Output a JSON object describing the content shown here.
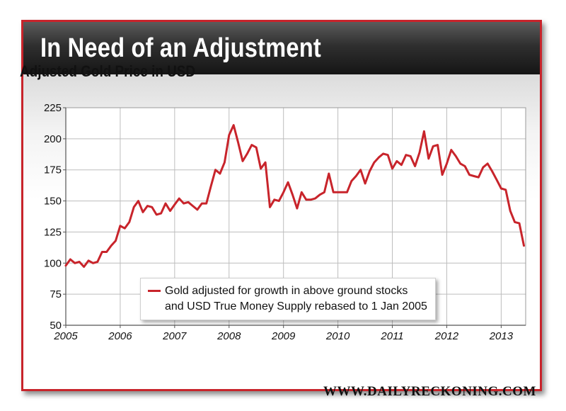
{
  "banner": {
    "title": "In Need of an Adjustment"
  },
  "colors": {
    "accent": "#c8242b",
    "banner": "#222222"
  },
  "footer": {
    "url": "WWW.DAILYRECKONING.COM"
  },
  "chart_data": {
    "type": "line",
    "title": "Adjusted Gold Price in USD",
    "xlabel": "",
    "ylabel": "",
    "xlim": [
      2005,
      2013.45
    ],
    "ylim": [
      50,
      225
    ],
    "x_ticks": [
      2005,
      2006,
      2007,
      2008,
      2009,
      2010,
      2011,
      2012,
      2013
    ],
    "x_tick_labels": [
      "2005",
      "2006",
      "2007",
      "2008",
      "2009",
      "2010",
      "2011",
      "2012",
      "2013"
    ],
    "y_ticks": [
      50,
      75,
      100,
      125,
      150,
      175,
      200,
      225
    ],
    "y_tick_labels": [
      "50",
      "75",
      "100",
      "125",
      "150",
      "175",
      "200",
      "225"
    ],
    "grid": true,
    "legend": {
      "placement": "bottom-center",
      "line1": "Gold adjusted for growth in above ground stocks",
      "line2": "and USD True Money Supply rebased to 1 Jan 2005"
    },
    "series": [
      {
        "name": "Gold adjusted for growth in above ground stocks and USD True Money Supply rebased to 1 Jan 2005",
        "x": [
          2005.0,
          2005.083,
          2005.167,
          2005.25,
          2005.333,
          2005.417,
          2005.5,
          2005.583,
          2005.667,
          2005.75,
          2005.833,
          2005.917,
          2006.0,
          2006.083,
          2006.167,
          2006.25,
          2006.333,
          2006.417,
          2006.5,
          2006.583,
          2006.667,
          2006.75,
          2006.833,
          2006.917,
          2007.0,
          2007.083,
          2007.167,
          2007.25,
          2007.333,
          2007.417,
          2007.5,
          2007.583,
          2007.667,
          2007.75,
          2007.833,
          2007.917,
          2008.0,
          2008.083,
          2008.167,
          2008.25,
          2008.333,
          2008.417,
          2008.5,
          2008.583,
          2008.667,
          2008.75,
          2008.833,
          2008.917,
          2009.0,
          2009.083,
          2009.167,
          2009.25,
          2009.333,
          2009.417,
          2009.5,
          2009.583,
          2009.667,
          2009.75,
          2009.833,
          2009.917,
          2010.0,
          2010.083,
          2010.167,
          2010.25,
          2010.333,
          2010.417,
          2010.5,
          2010.583,
          2010.667,
          2010.75,
          2010.833,
          2010.917,
          2011.0,
          2011.083,
          2011.167,
          2011.25,
          2011.333,
          2011.417,
          2011.5,
          2011.583,
          2011.667,
          2011.75,
          2011.833,
          2011.917,
          2012.0,
          2012.083,
          2012.167,
          2012.25,
          2012.333,
          2012.417,
          2012.5,
          2012.583,
          2012.667,
          2012.75,
          2012.833,
          2012.917,
          2013.0,
          2013.083,
          2013.167,
          2013.25,
          2013.333,
          2013.417
        ],
        "y": [
          98,
          103,
          100,
          101,
          97,
          102,
          100,
          101,
          109,
          109,
          114,
          118,
          130,
          128,
          133,
          145,
          150,
          141,
          146,
          145,
          139,
          140,
          148,
          142,
          147,
          152,
          148,
          149,
          146,
          143,
          148,
          148,
          162,
          175,
          172,
          181,
          203,
          211,
          197,
          182,
          188,
          195,
          193,
          176,
          181,
          145,
          151,
          150,
          157,
          165,
          155,
          144,
          157,
          151,
          151,
          152,
          155,
          157,
          172,
          157,
          157,
          157,
          157,
          166,
          170,
          175,
          164,
          174,
          181,
          185,
          188,
          187,
          176,
          182,
          179,
          187,
          186,
          178,
          189,
          206,
          184,
          194,
          195,
          171,
          180,
          191,
          186,
          180,
          178,
          171,
          170,
          169,
          177,
          180,
          174,
          167,
          160,
          159,
          142,
          133,
          132,
          114
        ]
      }
    ]
  }
}
